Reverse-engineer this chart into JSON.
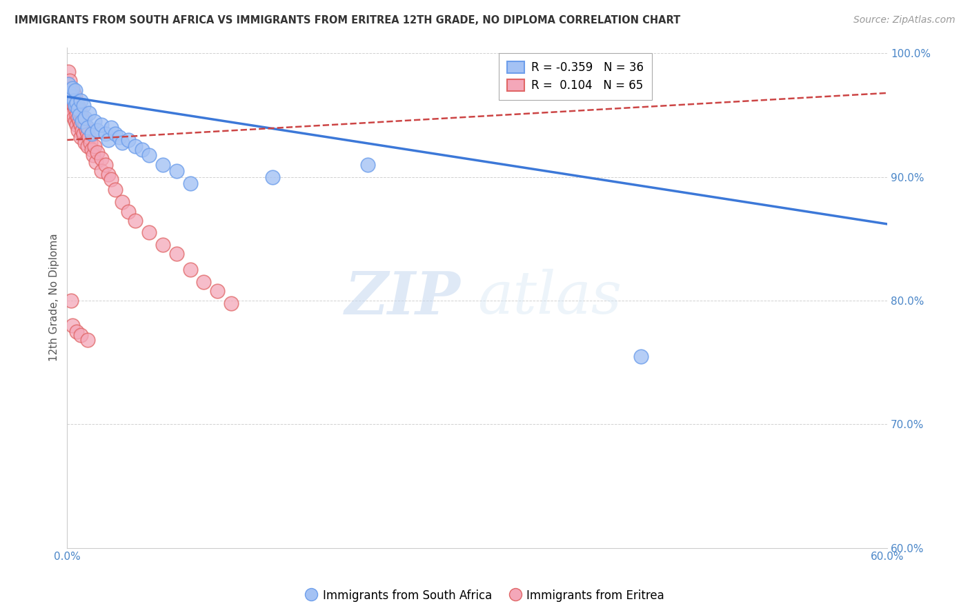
{
  "title": "IMMIGRANTS FROM SOUTH AFRICA VS IMMIGRANTS FROM ERITREA 12TH GRADE, NO DIPLOMA CORRELATION CHART",
  "source": "Source: ZipAtlas.com",
  "ylabel": "12th Grade, No Diploma",
  "xlim": [
    0.0,
    0.6
  ],
  "ylim": [
    0.6,
    1.005
  ],
  "xticks": [
    0.0,
    0.1,
    0.2,
    0.3,
    0.4,
    0.5,
    0.6
  ],
  "xticklabels": [
    "0.0%",
    "",
    "",
    "",
    "",
    "",
    "60.0%"
  ],
  "yticks": [
    0.6,
    0.7,
    0.8,
    0.9,
    1.0
  ],
  "yticklabels": [
    "60.0%",
    "70.0%",
    "80.0%",
    "90.0%",
    "100.0%"
  ],
  "blue_color": "#a4c2f4",
  "pink_color": "#f4a7b9",
  "blue_edge": "#6d9eeb",
  "pink_edge": "#e06666",
  "legend_blue_label": "Immigrants from South Africa",
  "legend_pink_label": "Immigrants from Eritrea",
  "R_blue": -0.359,
  "N_blue": 36,
  "R_pink": 0.104,
  "N_pink": 65,
  "watermark_zip": "ZIP",
  "watermark_atlas": "atlas",
  "blue_scatter_x": [
    0.001,
    0.002,
    0.003,
    0.004,
    0.005,
    0.006,
    0.006,
    0.007,
    0.008,
    0.009,
    0.01,
    0.011,
    0.012,
    0.013,
    0.015,
    0.016,
    0.018,
    0.02,
    0.022,
    0.025,
    0.028,
    0.03,
    0.032,
    0.035,
    0.038,
    0.04,
    0.045,
    0.05,
    0.055,
    0.06,
    0.07,
    0.08,
    0.09,
    0.15,
    0.22,
    0.42
  ],
  "blue_scatter_y": [
    0.975,
    0.968,
    0.965,
    0.972,
    0.962,
    0.97,
    0.958,
    0.96,
    0.955,
    0.95,
    0.962,
    0.945,
    0.958,
    0.948,
    0.94,
    0.952,
    0.935,
    0.945,
    0.938,
    0.942,
    0.935,
    0.93,
    0.94,
    0.935,
    0.932,
    0.928,
    0.93,
    0.925,
    0.922,
    0.918,
    0.91,
    0.905,
    0.895,
    0.9,
    0.91,
    0.755
  ],
  "pink_scatter_x": [
    0.001,
    0.001,
    0.002,
    0.002,
    0.002,
    0.003,
    0.003,
    0.003,
    0.004,
    0.004,
    0.004,
    0.005,
    0.005,
    0.005,
    0.006,
    0.006,
    0.006,
    0.007,
    0.007,
    0.007,
    0.008,
    0.008,
    0.008,
    0.009,
    0.009,
    0.01,
    0.01,
    0.01,
    0.011,
    0.011,
    0.012,
    0.012,
    0.013,
    0.013,
    0.014,
    0.015,
    0.015,
    0.016,
    0.017,
    0.018,
    0.019,
    0.02,
    0.021,
    0.022,
    0.025,
    0.025,
    0.028,
    0.03,
    0.032,
    0.035,
    0.04,
    0.045,
    0.05,
    0.06,
    0.07,
    0.08,
    0.09,
    0.1,
    0.11,
    0.12,
    0.003,
    0.004,
    0.007,
    0.01,
    0.015
  ],
  "pink_scatter_y": [
    0.985,
    0.975,
    0.978,
    0.968,
    0.96,
    0.972,
    0.965,
    0.958,
    0.97,
    0.962,
    0.952,
    0.968,
    0.958,
    0.948,
    0.965,
    0.955,
    0.945,
    0.96,
    0.95,
    0.942,
    0.958,
    0.948,
    0.938,
    0.955,
    0.945,
    0.952,
    0.942,
    0.932,
    0.948,
    0.938,
    0.945,
    0.935,
    0.942,
    0.928,
    0.938,
    0.935,
    0.925,
    0.932,
    0.928,
    0.922,
    0.918,
    0.925,
    0.912,
    0.92,
    0.915,
    0.905,
    0.91,
    0.902,
    0.898,
    0.89,
    0.88,
    0.872,
    0.865,
    0.855,
    0.845,
    0.838,
    0.825,
    0.815,
    0.808,
    0.798,
    0.8,
    0.78,
    0.775,
    0.772,
    0.768
  ],
  "blue_trend_x": [
    0.0,
    0.6
  ],
  "blue_trend_y": [
    0.965,
    0.862
  ],
  "pink_trend_x": [
    0.0,
    0.6
  ],
  "pink_trend_y": [
    0.93,
    0.968
  ]
}
